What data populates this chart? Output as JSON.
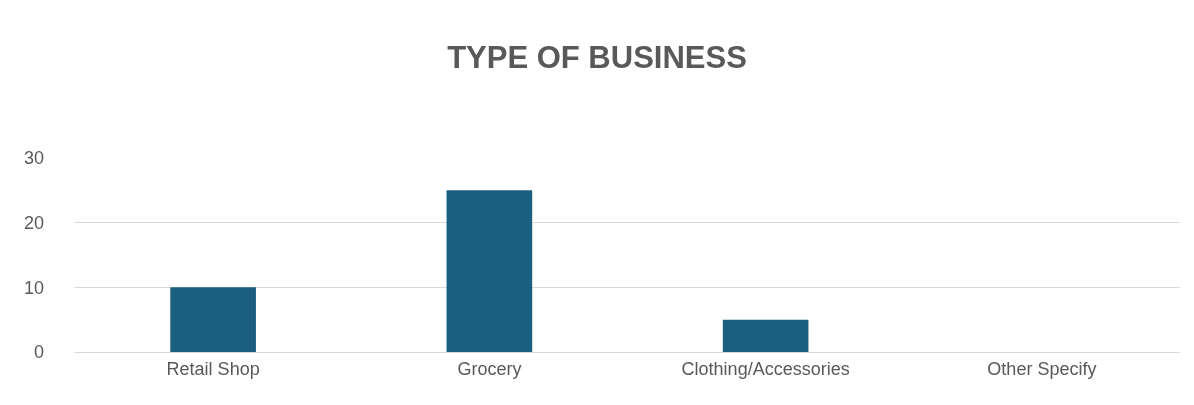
{
  "chart_data": {
    "type": "bar",
    "title": "TYPE OF BUSINESS",
    "categories": [
      "Retail Shop",
      "Grocery",
      "Clothing/Accessories",
      "Other Specify"
    ],
    "values": [
      10,
      25,
      5,
      0
    ],
    "color": "#1b5e80",
    "ylim": [
      0,
      30
    ],
    "yticks": [
      0,
      10,
      20,
      30
    ],
    "grid": "y"
  }
}
